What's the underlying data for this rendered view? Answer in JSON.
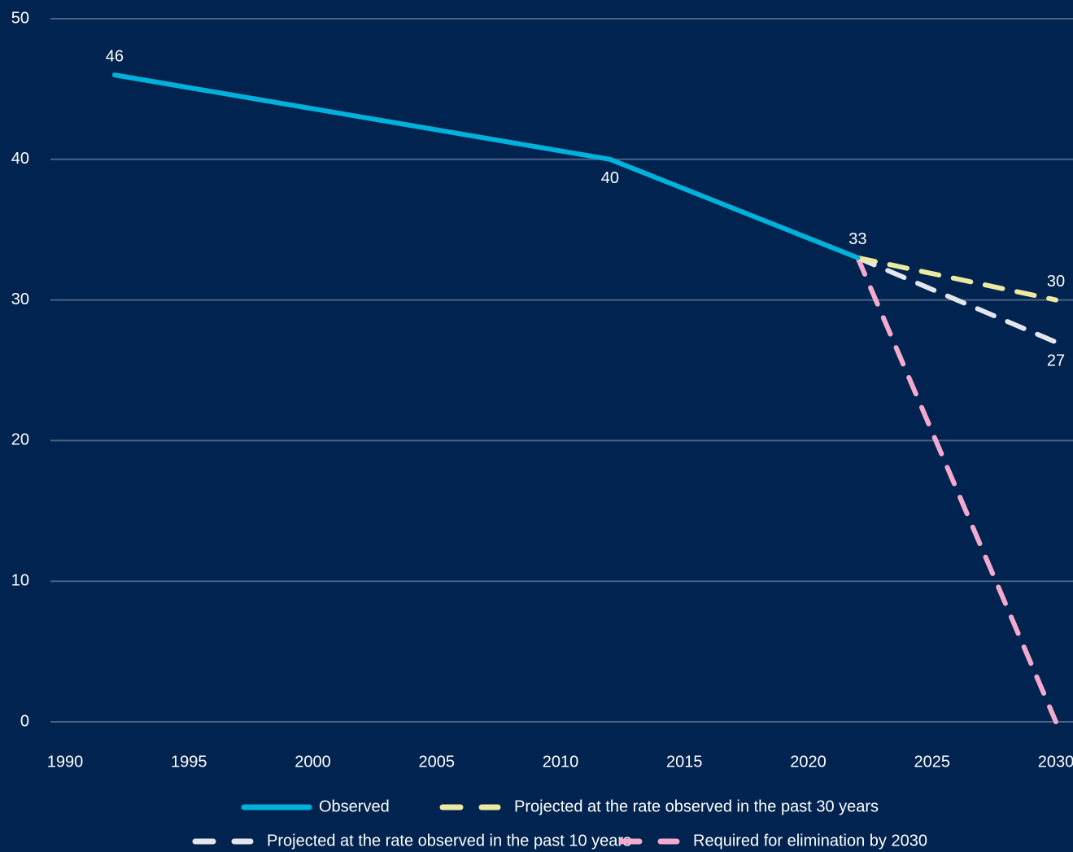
{
  "chart_data": {
    "type": "line",
    "x": [
      1992,
      2012,
      2022,
      2030
    ],
    "series": [
      {
        "name": "Observed",
        "color": "#00b1db",
        "dash": false,
        "data_labels": "all",
        "x": [
          1992,
          2012,
          2022
        ],
        "values": [
          46,
          40,
          33
        ]
      },
      {
        "name": "Projected at the rate observed in the past 30 years",
        "color": "#ede9a0",
        "dash": true,
        "data_labels": "last",
        "x": [
          2022,
          2030
        ],
        "values": [
          33,
          30
        ]
      },
      {
        "name": "Projected at the rate observed in the past 10 years",
        "color": "#e4e6ee",
        "dash": true,
        "data_labels": "last",
        "x": [
          2022,
          2030
        ],
        "values": [
          33,
          27
        ]
      },
      {
        "name": "Required for elimination by 2030",
        "color": "#f4a9cf",
        "dash": true,
        "x": [
          2022,
          2030
        ],
        "values": [
          33,
          0
        ]
      }
    ],
    "xlim": [
      1990,
      2030
    ],
    "xticks": [
      1990,
      1995,
      2000,
      2005,
      2010,
      2015,
      2020,
      2025,
      2030
    ],
    "ylim": [
      0,
      50
    ],
    "yticks": [
      0,
      10,
      20,
      30,
      40,
      50
    ],
    "grid": true,
    "legend": "bottom"
  }
}
